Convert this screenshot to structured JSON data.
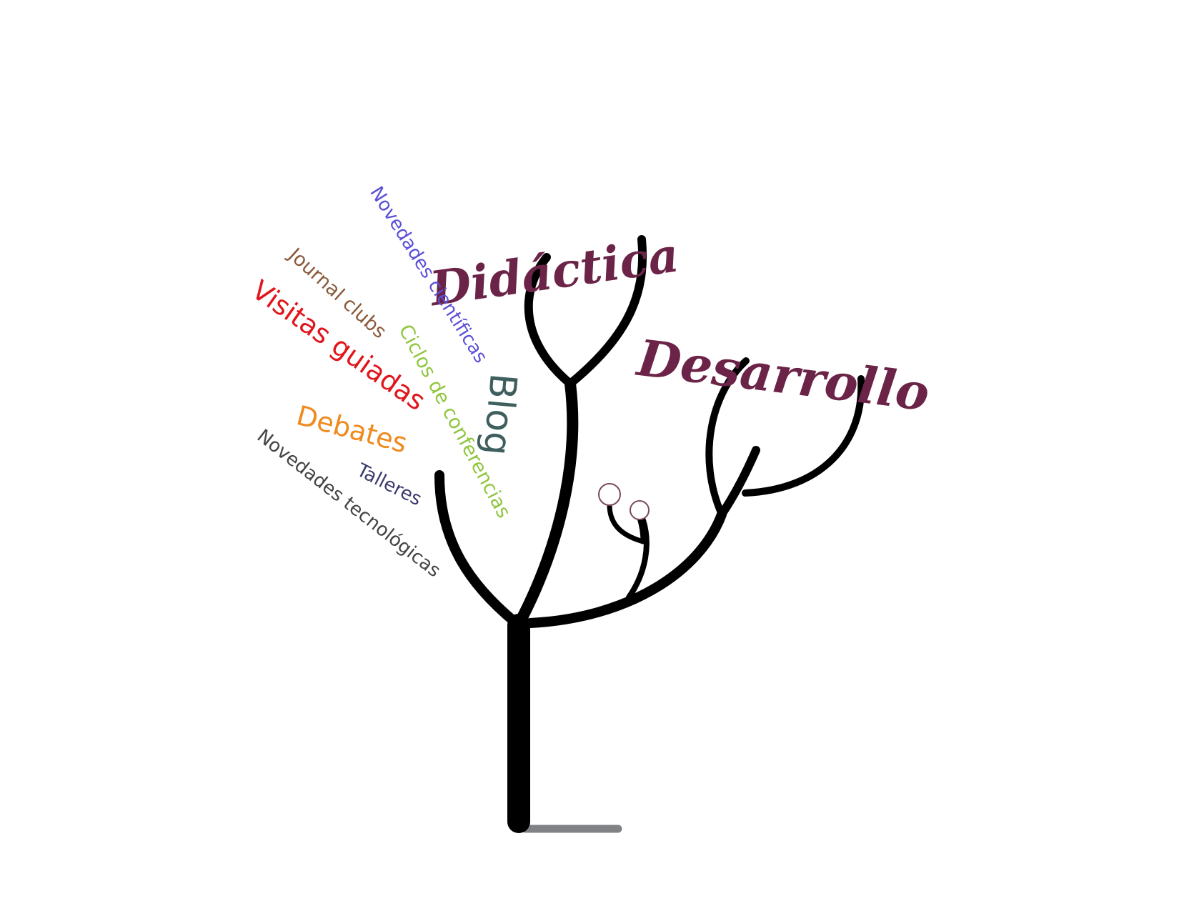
{
  "diagram": {
    "branch_titles": {
      "didactica": "Didáctica",
      "desarrollo": "Desarrollo"
    },
    "leaf_words": [
      {
        "id": "novedades_cientificas",
        "text": "Novedades científicas",
        "color": "#5b4fd6"
      },
      {
        "id": "journal_clubs",
        "text": "Journal clubs",
        "color": "#8a5a3b"
      },
      {
        "id": "visitas_guiadas",
        "text": "Visitas guiadas",
        "color": "#e0161c"
      },
      {
        "id": "ciclos_de_conferencias",
        "text": "Ciclos de conferencias",
        "color": "#8fc63e"
      },
      {
        "id": "blog",
        "text": "Blog",
        "color": "#3f5f5f"
      },
      {
        "id": "debates",
        "text": "Debates",
        "color": "#ef8a1e"
      },
      {
        "id": "talleres",
        "text": "Talleres",
        "color": "#3b3b6e"
      },
      {
        "id": "novedades_tecnologicas",
        "text": "Novedades tecnológicas",
        "color": "#444444"
      }
    ],
    "colors": {
      "title": "#6b2448",
      "tree": "#000000",
      "ground": "#808285",
      "bud": "#7a4a55"
    }
  }
}
